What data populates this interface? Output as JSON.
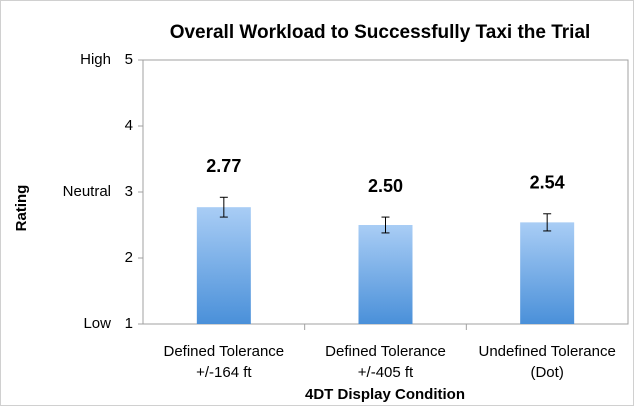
{
  "chart_data": {
    "type": "bar",
    "title": "Overall Workload to Successfully Taxi the Trial",
    "x_label": "4DT Display Condition",
    "y_label": "Rating",
    "categories": [
      [
        "Defined Tolerance",
        "+/-164 ft"
      ],
      [
        "Defined Tolerance",
        "+/-405 ft"
      ],
      [
        "Undefined Tolerance",
        "(Dot)"
      ]
    ],
    "values": [
      2.77,
      2.5,
      2.54
    ],
    "value_labels": [
      "2.77",
      "2.50",
      "2.54"
    ],
    "errors": [
      0.15,
      0.12,
      0.13
    ],
    "color": "#4a90d9",
    "ylim": [
      1,
      5
    ],
    "yticks": [
      1,
      2,
      3,
      4,
      5
    ],
    "y_level_labels": [
      {
        "value": 5,
        "label": "High"
      },
      {
        "value": 3,
        "label": "Neutral"
      },
      {
        "value": 1,
        "label": "Low"
      }
    ],
    "grid": false
  }
}
